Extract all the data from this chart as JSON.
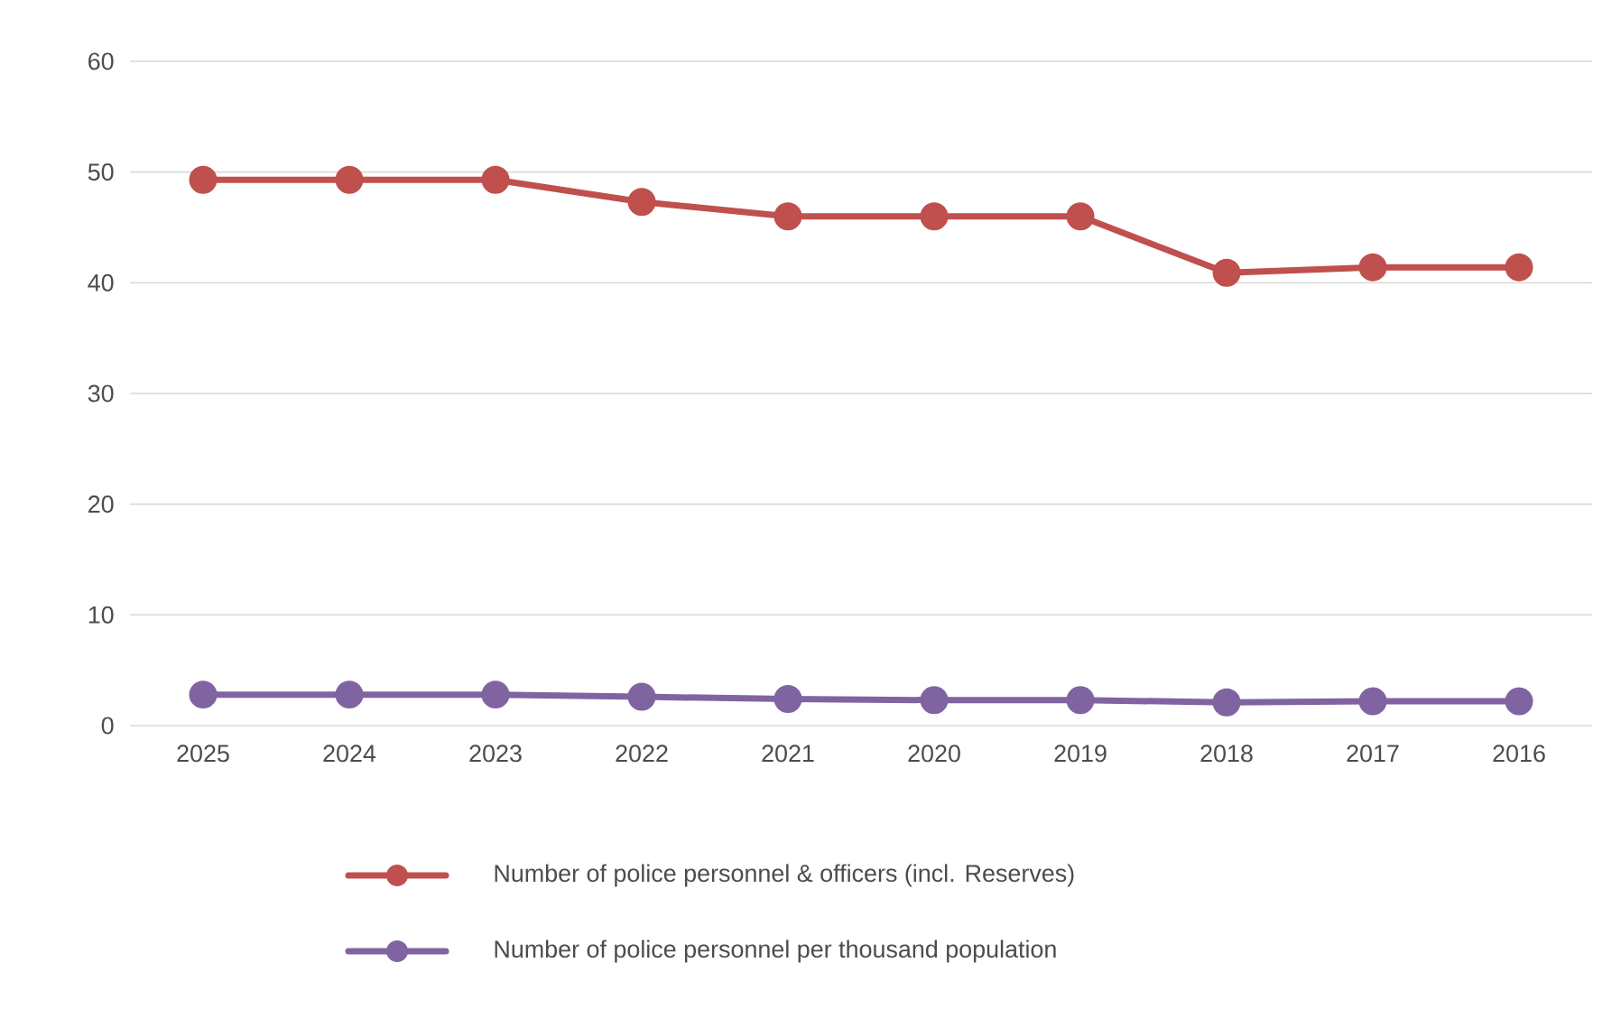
{
  "chart_data": {
    "type": "line",
    "categories": [
      "2025",
      "2024",
      "2023",
      "2022",
      "2021",
      "2020",
      "2019",
      "2018",
      "2017",
      "2016"
    ],
    "series": [
      {
        "name": "Number of police personnel & officers (incl. Reserves)",
        "color": "#c0504d",
        "values": [
          49.3,
          49.3,
          49.3,
          47.3,
          46.0,
          46.0,
          46.0,
          40.9,
          41.4,
          41.4
        ]
      },
      {
        "name": "Number of police personnel per thousand population",
        "color": "#8064a2",
        "values": [
          2.8,
          2.8,
          2.8,
          2.6,
          2.4,
          2.3,
          2.3,
          2.1,
          2.2,
          2.2
        ]
      }
    ],
    "ylim": [
      0,
      60
    ],
    "yticks": [
      0,
      10,
      20,
      30,
      40,
      50,
      60
    ],
    "grid": "y",
    "legend": "bottom",
    "marker": "circle",
    "line_style": "solid"
  }
}
